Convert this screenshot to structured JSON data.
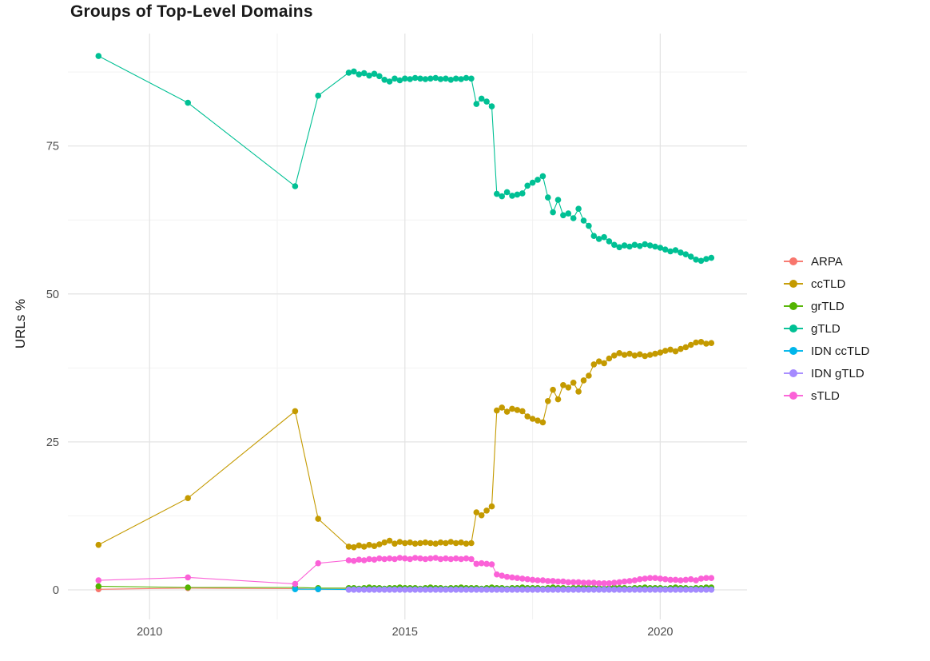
{
  "chart_data": {
    "type": "line",
    "title": "Groups of Top-Level Domains",
    "xlabel": "",
    "ylabel": "URLs %",
    "xlim": [
      2008.4,
      2021.7
    ],
    "ylim": [
      -5,
      94
    ],
    "xticks": [
      2010,
      2015,
      2020
    ],
    "yticks": [
      0,
      25,
      50,
      75
    ],
    "grid": true,
    "legend_position": "right",
    "colors": {
      "background": "#ffffff",
      "grid_major": "#e3e3e3",
      "grid_minor": "#f2f2f2",
      "axis_text": "#4d4d4d",
      "text": "#1a1a1a"
    },
    "x_dense": [
      2013.9,
      2014.0,
      2014.1,
      2014.2,
      2014.3,
      2014.4,
      2014.5,
      2014.6,
      2014.7,
      2014.8,
      2014.9,
      2015.0,
      2015.1,
      2015.2,
      2015.3,
      2015.4,
      2015.5,
      2015.6,
      2015.7,
      2015.8,
      2015.9,
      2016.0,
      2016.1,
      2016.2,
      2016.3,
      2016.4,
      2016.5,
      2016.6,
      2016.7,
      2016.8,
      2016.9,
      2017.0,
      2017.1,
      2017.2,
      2017.3,
      2017.4,
      2017.5,
      2017.6,
      2017.7,
      2017.8,
      2017.9,
      2018.0,
      2018.1,
      2018.2,
      2018.3,
      2018.4,
      2018.5,
      2018.6,
      2018.7,
      2018.8,
      2018.9,
      2019.0,
      2019.1,
      2019.2,
      2019.3,
      2019.4,
      2019.5,
      2019.6,
      2019.7,
      2019.8,
      2019.9,
      2020.0,
      2020.1,
      2020.2,
      2020.3,
      2020.4,
      2020.5,
      2020.6,
      2020.7,
      2020.8,
      2020.9,
      2021.0
    ],
    "series": [
      {
        "name": "ARPA",
        "color": "#F8766D",
        "early": [
          [
            2009.0,
            0.1
          ],
          [
            2010.75,
            0.3
          ],
          [
            2012.85,
            0.2
          ],
          [
            2013.3,
            0.1
          ]
        ],
        "y_dense": [
          0.1,
          0.1,
          0.1,
          0.1,
          0.1,
          0.1,
          0.1,
          0.1,
          0.1,
          0.1,
          0.1,
          0.1,
          0.1,
          0.1,
          0.1,
          0.1,
          0.1,
          0.1,
          0.1,
          0.1,
          0.1,
          0.1,
          0.1,
          0.1,
          0.1,
          0.1,
          0.1,
          0.1,
          0.1,
          0.1,
          0.1,
          0.1,
          0.1,
          0.1,
          0.1,
          0.1,
          0.1,
          0.1,
          0.1,
          0.1,
          0.1,
          0.1,
          0.1,
          0.1,
          0.1,
          0.1,
          0.1,
          0.1,
          0.1,
          0.1,
          0.1,
          0.1,
          0.1,
          0.1,
          0.1,
          0.1,
          0.1,
          0.1,
          0.1,
          0.1,
          0.1,
          0.1,
          0.1,
          0.1,
          0.1,
          0.1,
          0.1,
          0.1,
          0.1,
          0.1,
          0.1,
          0.1
        ]
      },
      {
        "name": "ccTLD",
        "color": "#C49A00",
        "early": [
          [
            2009.0,
            7.6
          ],
          [
            2010.75,
            15.5
          ],
          [
            2012.85,
            30.2
          ],
          [
            2013.3,
            12.0
          ]
        ],
        "y_dense": [
          7.3,
          7.2,
          7.5,
          7.3,
          7.6,
          7.4,
          7.7,
          8.0,
          8.3,
          7.8,
          8.1,
          7.9,
          8.0,
          7.8,
          7.9,
          8.0,
          7.9,
          7.8,
          8.0,
          7.9,
          8.1,
          7.9,
          8.0,
          7.8,
          7.9,
          13.1,
          12.6,
          13.4,
          14.1,
          30.3,
          30.8,
          30.1,
          30.6,
          30.4,
          30.2,
          29.3,
          28.9,
          28.6,
          28.3,
          31.9,
          33.8,
          32.2,
          34.6,
          34.2,
          35.0,
          33.5,
          35.4,
          36.2,
          38.1,
          38.6,
          38.3,
          39.1,
          39.6,
          40.0,
          39.7,
          39.9,
          39.6,
          39.8,
          39.5,
          39.7,
          39.9,
          40.1,
          40.4,
          40.6,
          40.3,
          40.7,
          41.0,
          41.4,
          41.8,
          41.9,
          41.6,
          41.7
        ]
      },
      {
        "name": "grTLD",
        "color": "#53B400",
        "early": [
          [
            2009.0,
            0.6
          ],
          [
            2010.75,
            0.4
          ],
          [
            2012.85,
            0.4
          ],
          [
            2013.3,
            0.3
          ]
        ],
        "y_dense": [
          0.3,
          0.3,
          0.2,
          0.3,
          0.4,
          0.3,
          0.3,
          0.2,
          0.3,
          0.3,
          0.4,
          0.3,
          0.3,
          0.3,
          0.2,
          0.3,
          0.4,
          0.3,
          0.3,
          0.2,
          0.3,
          0.3,
          0.4,
          0.3,
          0.3,
          0.3,
          0.2,
          0.3,
          0.4,
          0.3,
          0.3,
          0.2,
          0.3,
          0.3,
          0.4,
          0.3,
          0.3,
          0.3,
          0.2,
          0.3,
          0.4,
          0.3,
          0.3,
          0.2,
          0.3,
          0.3,
          0.4,
          0.3,
          0.3,
          0.3,
          0.2,
          0.3,
          0.4,
          0.3,
          0.3,
          0.2,
          0.3,
          0.3,
          0.4,
          0.3,
          0.3,
          0.3,
          0.2,
          0.3,
          0.4,
          0.3,
          0.3,
          0.2,
          0.3,
          0.3,
          0.4,
          0.4
        ]
      },
      {
        "name": "gTLD",
        "color": "#00C094",
        "early": [
          [
            2009.0,
            90.2
          ],
          [
            2010.75,
            82.3
          ],
          [
            2012.85,
            68.2
          ],
          [
            2013.3,
            83.5
          ]
        ],
        "y_dense": [
          87.4,
          87.6,
          87.1,
          87.3,
          86.9,
          87.2,
          86.8,
          86.2,
          85.9,
          86.4,
          86.1,
          86.4,
          86.3,
          86.5,
          86.4,
          86.3,
          86.4,
          86.5,
          86.3,
          86.4,
          86.2,
          86.4,
          86.3,
          86.5,
          86.4,
          82.1,
          83.0,
          82.5,
          81.7,
          66.9,
          66.5,
          67.2,
          66.6,
          66.8,
          67.0,
          68.3,
          68.8,
          69.3,
          69.9,
          66.3,
          63.8,
          65.9,
          63.3,
          63.6,
          62.8,
          64.4,
          62.4,
          61.5,
          59.8,
          59.3,
          59.6,
          58.9,
          58.3,
          57.9,
          58.2,
          58.0,
          58.3,
          58.1,
          58.4,
          58.2,
          58.0,
          57.8,
          57.5,
          57.2,
          57.4,
          57.0,
          56.7,
          56.3,
          55.8,
          55.6,
          55.9,
          56.1
        ]
      },
      {
        "name": "IDN ccTLD",
        "color": "#00B6EB",
        "early": [
          [
            2012.85,
            0.1
          ],
          [
            2013.3,
            0.1
          ]
        ],
        "y_dense": [
          0.05,
          0.05,
          0.05,
          0.05,
          0.05,
          0.05,
          0.05,
          0.05,
          0.05,
          0.05,
          0.05,
          0.05,
          0.05,
          0.05,
          0.05,
          0.05,
          0.05,
          0.05,
          0.05,
          0.05,
          0.05,
          0.05,
          0.05,
          0.05,
          0.05,
          0.05,
          0.05,
          0.05,
          0.05,
          0.05,
          0.05,
          0.05,
          0.05,
          0.05,
          0.05,
          0.05,
          0.05,
          0.05,
          0.05,
          0.05,
          0.05,
          0.05,
          0.05,
          0.05,
          0.05,
          0.05,
          0.05,
          0.05,
          0.05,
          0.05,
          0.05,
          0.05,
          0.05,
          0.05,
          0.05,
          0.05,
          0.05,
          0.05,
          0.05,
          0.05,
          0.05,
          0.05,
          0.05,
          0.05,
          0.05,
          0.05,
          0.05,
          0.05,
          0.05,
          0.05,
          0.05,
          0.05
        ]
      },
      {
        "name": "IDN gTLD",
        "color": "#A58AFF",
        "early": [],
        "y_dense": [
          0.03,
          0.03,
          0.03,
          0.03,
          0.03,
          0.03,
          0.03,
          0.03,
          0.03,
          0.03,
          0.03,
          0.03,
          0.03,
          0.03,
          0.03,
          0.03,
          0.03,
          0.03,
          0.03,
          0.03,
          0.03,
          0.03,
          0.03,
          0.03,
          0.03,
          0.03,
          0.03,
          0.03,
          0.03,
          0.03,
          0.03,
          0.03,
          0.03,
          0.03,
          0.03,
          0.03,
          0.03,
          0.03,
          0.03,
          0.03,
          0.03,
          0.03,
          0.03,
          0.03,
          0.03,
          0.03,
          0.03,
          0.03,
          0.03,
          0.03,
          0.03,
          0.03,
          0.03,
          0.03,
          0.03,
          0.03,
          0.03,
          0.03,
          0.03,
          0.03,
          0.03,
          0.03,
          0.03,
          0.03,
          0.03,
          0.03,
          0.03,
          0.03,
          0.03,
          0.03,
          0.03,
          0.03
        ]
      },
      {
        "name": "sTLD",
        "color": "#FB61D7",
        "early": [
          [
            2009.0,
            1.6
          ],
          [
            2010.75,
            2.1
          ],
          [
            2012.85,
            1.0
          ],
          [
            2013.3,
            4.5
          ]
        ],
        "y_dense": [
          5.0,
          4.9,
          5.1,
          5.0,
          5.2,
          5.1,
          5.3,
          5.2,
          5.3,
          5.2,
          5.4,
          5.3,
          5.2,
          5.4,
          5.3,
          5.2,
          5.3,
          5.4,
          5.2,
          5.3,
          5.2,
          5.3,
          5.2,
          5.3,
          5.2,
          4.4,
          4.5,
          4.4,
          4.3,
          2.6,
          2.4,
          2.2,
          2.1,
          2.0,
          1.9,
          1.8,
          1.7,
          1.6,
          1.6,
          1.5,
          1.5,
          1.4,
          1.4,
          1.3,
          1.3,
          1.3,
          1.2,
          1.2,
          1.2,
          1.1,
          1.1,
          1.1,
          1.2,
          1.3,
          1.4,
          1.5,
          1.6,
          1.8,
          1.9,
          2.0,
          2.0,
          1.9,
          1.8,
          1.7,
          1.7,
          1.6,
          1.7,
          1.8,
          1.6,
          1.9,
          2.0,
          2.0
        ]
      }
    ]
  }
}
